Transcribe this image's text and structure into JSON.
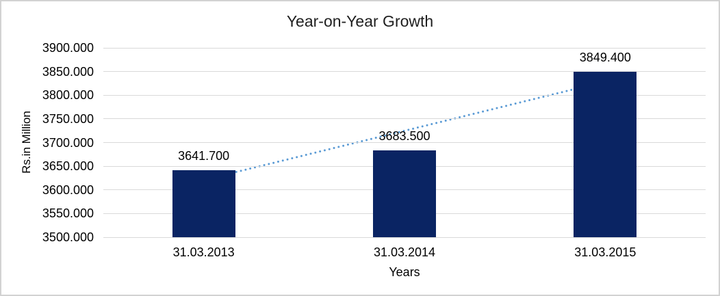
{
  "chart_data": {
    "type": "bar",
    "title": "Year-on-Year Growth",
    "xlabel": "Years",
    "ylabel": "Rs.in Million",
    "categories": [
      "31.03.2013",
      "31.03.2014",
      "31.03.2015"
    ],
    "values": [
      3641.7,
      3683.5,
      3849.4
    ],
    "data_labels": [
      "3641.700",
      "3683.500",
      "3849.400"
    ],
    "y_ticks": [
      "3900.000",
      "3850.000",
      "3800.000",
      "3750.000",
      "3700.000",
      "3650.000",
      "3600.000",
      "3550.000",
      "3500.000"
    ],
    "ylim": [
      3500,
      3900
    ],
    "y_step": 50,
    "grid": true,
    "legend": "none",
    "colors": {
      "bar": "#0a2463",
      "trendline": "#5b9bd5",
      "gridline": "#d9d9d9",
      "text": "#000000",
      "title": "#1f1f1f"
    },
    "trendline": {
      "type": "linear",
      "style": "dotted"
    }
  }
}
